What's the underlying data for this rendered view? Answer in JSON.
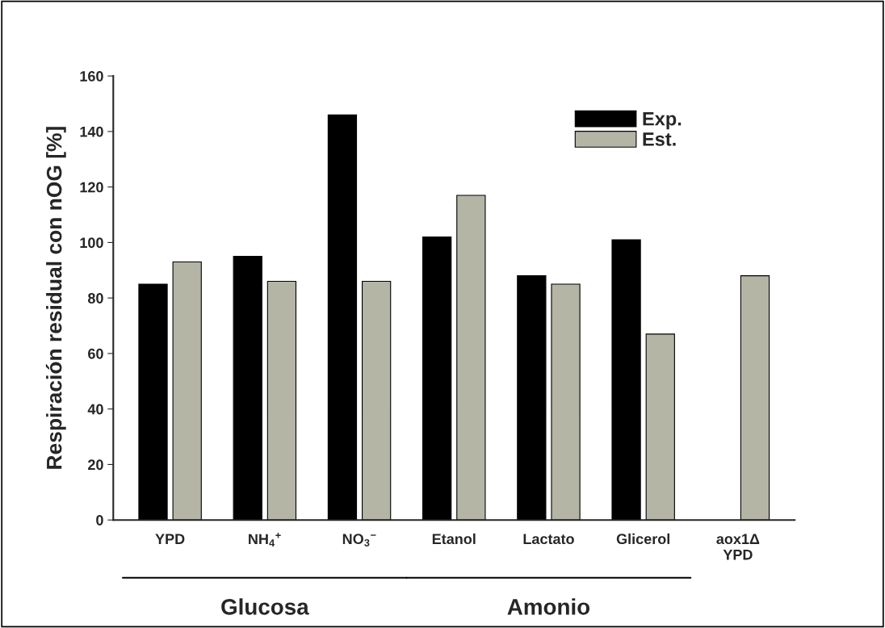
{
  "chart_data": {
    "type": "bar",
    "ylabel": "Respiración residual con nOG [%]",
    "categories": [
      "YPD",
      "NH$_{4}$$^{+}$",
      "NO$_{3}$$^{−}$",
      "Etanol",
      "Lactato",
      "Glicerol",
      "aox1Δ\nYPD"
    ],
    "series": [
      {
        "name": "Exp.",
        "color": "#000000",
        "values": [
          85,
          95,
          146,
          102,
          88,
          101,
          null
        ]
      },
      {
        "name": "Est.",
        "color": "#b5b5a6",
        "values": [
          93,
          86,
          86,
          117,
          85,
          67,
          88
        ]
      }
    ],
    "ylim": [
      0,
      160
    ],
    "yticks": [
      0,
      20,
      40,
      60,
      80,
      100,
      120,
      140,
      160
    ],
    "grid": false,
    "legend": "top right",
    "annotations": [
      "Glucosa",
      "Amonio"
    ]
  }
}
